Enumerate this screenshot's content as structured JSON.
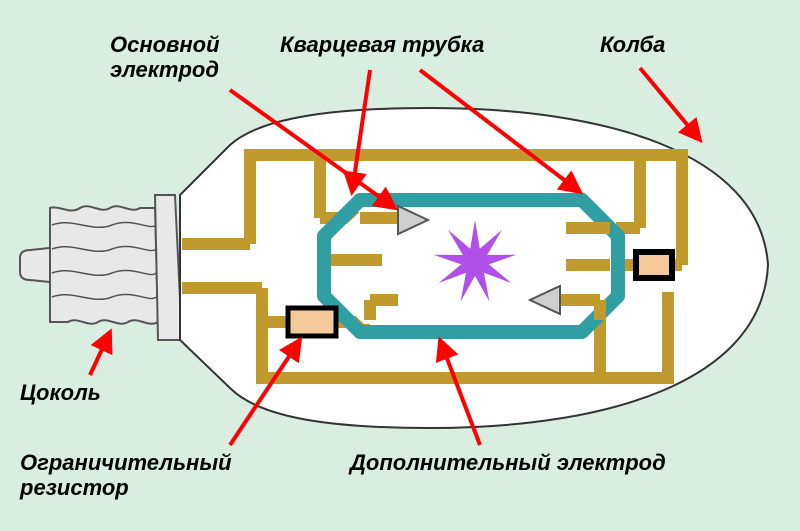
{
  "diagram": {
    "type": "infographic",
    "background_color": "#d9eee0",
    "bulb": {
      "outline_color": "#333333",
      "outline_width": 2,
      "fill": "#ffffff"
    },
    "base": {
      "fill": "#e8e8e8",
      "stroke": "#555555",
      "stroke_width": 2
    },
    "wires": {
      "color": "#c19a2e",
      "width": 12
    },
    "quartz_tube": {
      "stroke": "#2f9fa3",
      "stroke_width": 14,
      "fill_inner": "#ffffff"
    },
    "resistor": {
      "fill": "#f5c89a",
      "stroke": "#000000",
      "stroke_width": 5
    },
    "aux_electrode": {
      "fill": "#f5c89a",
      "stroke": "#000000",
      "stroke_width": 6
    },
    "main_electrode": {
      "fill": "#cfcfcf",
      "stroke": "#555555",
      "stroke_width": 2
    },
    "arc": {
      "color": "#b050e8"
    },
    "arrow": {
      "color": "#ff0000",
      "width": 4
    },
    "label_color": "#000000",
    "label_fontsize": 22,
    "labels": {
      "main_electrode": "Основной\nэлектрод",
      "quartz_tube": "Кварцевая трубка",
      "bulb": "Колба",
      "base": "Цоколь",
      "resistor": "Ограничительный\nрезистор",
      "aux_electrode": "Дополнительный электрод"
    }
  }
}
